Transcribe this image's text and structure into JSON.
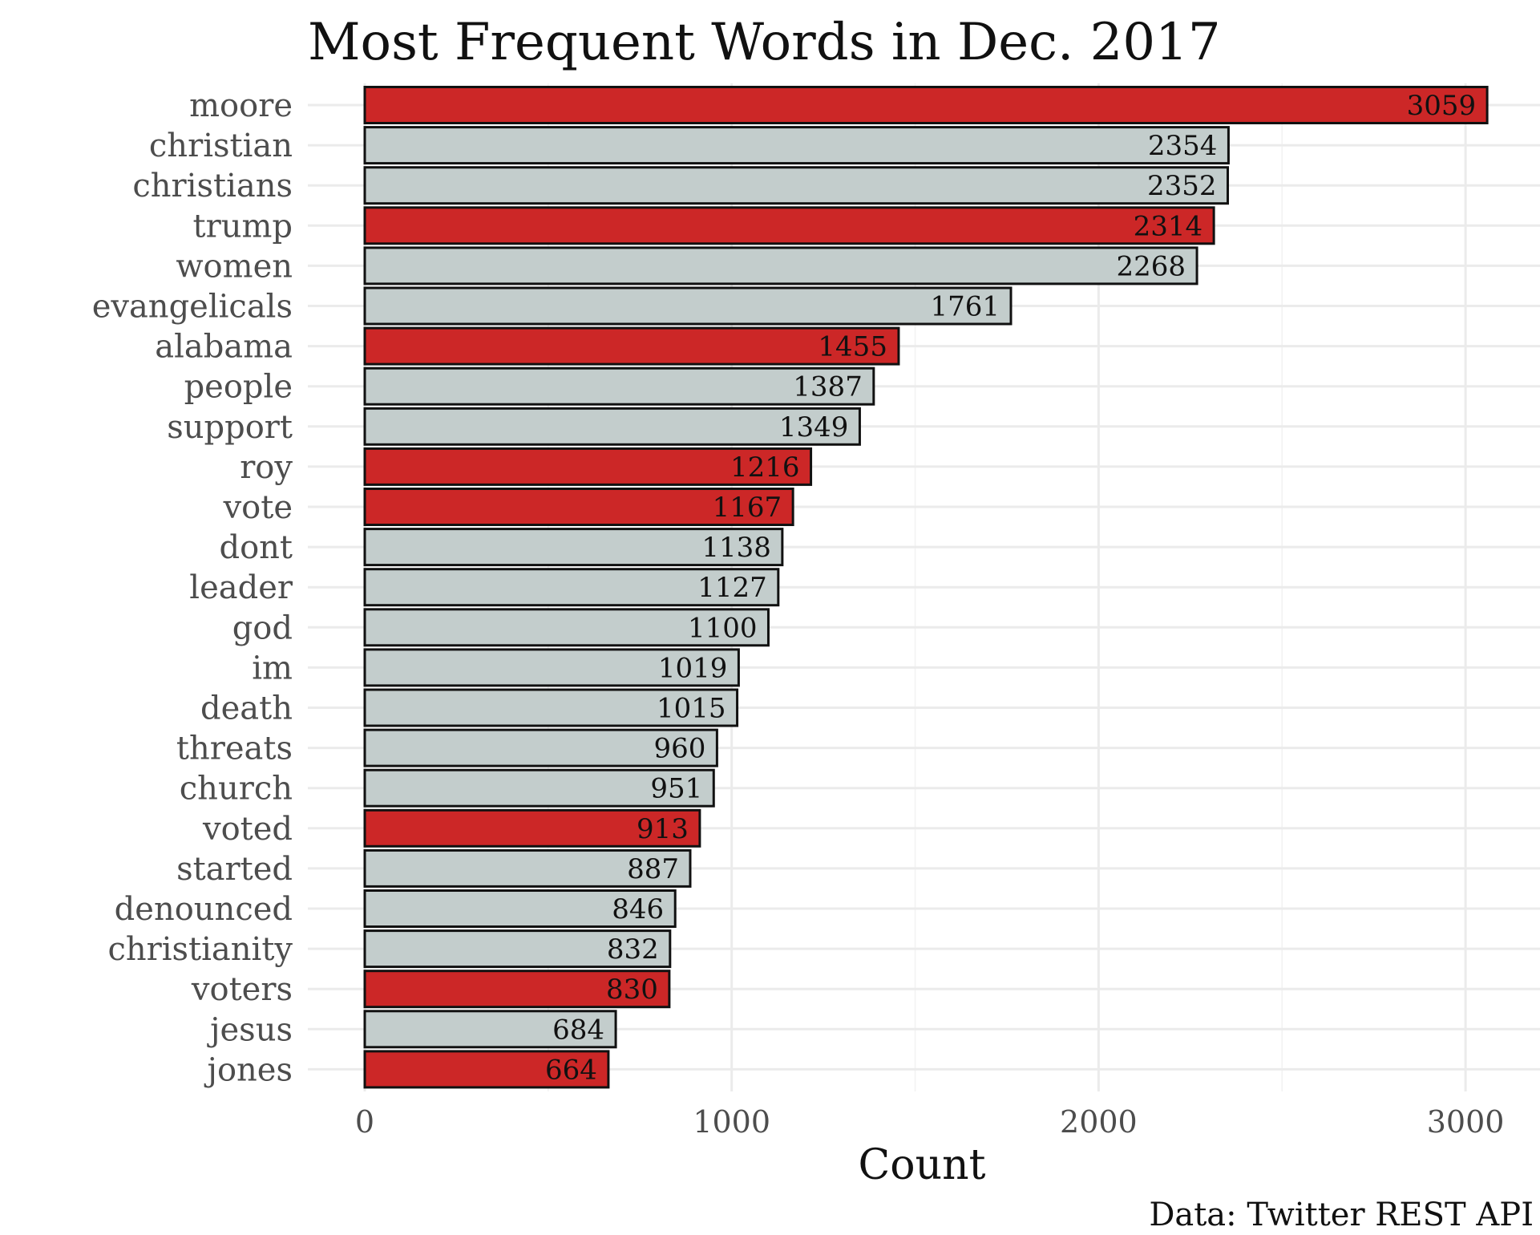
{
  "chart_data": {
    "type": "bar",
    "orientation": "horizontal",
    "title": "Most Frequent Words in Dec. 2017",
    "xlabel": "Count",
    "ylabel": "",
    "caption": "Data: Twitter REST API",
    "xlim": [
      0,
      3200
    ],
    "xticks": [
      0,
      1000,
      2000,
      3000
    ],
    "xtick_labels": [
      "0",
      "1000",
      "2000",
      "3000"
    ],
    "grid": true,
    "legend": "none",
    "colors": {
      "highlight": "#cc2727",
      "default": "#c3cdcc",
      "outline": "#111111"
    },
    "categories": [
      "moore",
      "christian",
      "christians",
      "trump",
      "women",
      "evangelicals",
      "alabama",
      "people",
      "support",
      "roy",
      "vote",
      "dont",
      "leader",
      "god",
      "im",
      "death",
      "threats",
      "church",
      "voted",
      "started",
      "denounced",
      "christianity",
      "voters",
      "jesus",
      "jones"
    ],
    "values": [
      3059,
      2354,
      2352,
      2314,
      2268,
      1761,
      1455,
      1387,
      1349,
      1216,
      1167,
      1138,
      1127,
      1100,
      1019,
      1015,
      960,
      951,
      913,
      887,
      846,
      832,
      830,
      684,
      664
    ],
    "value_labels": [
      "3059",
      "2354",
      "2352",
      "2314",
      "2268",
      "1761",
      "1455",
      "1387",
      "1349",
      "1216",
      "1167",
      "1138",
      "1127",
      "1100",
      "1019",
      "1015",
      "960",
      "951",
      "913",
      "887",
      "846",
      "832",
      "830",
      "684",
      "664"
    ],
    "highlighted": [
      true,
      false,
      false,
      true,
      false,
      false,
      true,
      false,
      false,
      true,
      true,
      false,
      false,
      false,
      false,
      false,
      false,
      false,
      true,
      false,
      false,
      false,
      true,
      false,
      true
    ]
  }
}
